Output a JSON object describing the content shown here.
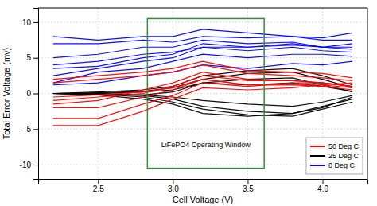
{
  "chart_data": {
    "type": "line",
    "xlabel": "Cell Voltage (V)",
    "ylabel": "Total Error Voltage (mv)",
    "xlim": [
      2.1,
      4.3
    ],
    "ylim": [
      -12,
      12
    ],
    "xticks": [
      2.5,
      {
        "value": 3.0,
        "label": "3.0"
      },
      3.5,
      {
        "value": 4.0,
        "label": "4.0"
      }
    ],
    "yticks": [
      -10,
      -5,
      0,
      5,
      10
    ],
    "grid": true,
    "legend": "lower right",
    "x": [
      2.2,
      2.5,
      2.8,
      3.0,
      3.2,
      3.5,
      3.8,
      4.0,
      4.2
    ],
    "series": [
      {
        "name": "0 Deg C",
        "color": "blue",
        "values": [
          8.0,
          7.5,
          8.0,
          8.0,
          9.0,
          8.5,
          8.0,
          7.8,
          8.5
        ]
      },
      {
        "name": "0 Deg C",
        "color": "blue",
        "values": [
          7.0,
          7.0,
          7.5,
          7.2,
          8.0,
          7.8,
          8.0,
          7.5,
          7.5
        ]
      },
      {
        "name": "0 Deg C",
        "color": "blue",
        "values": [
          5.0,
          5.5,
          6.5,
          6.5,
          7.5,
          7.0,
          7.2,
          6.5,
          7.0
        ]
      },
      {
        "name": "0 Deg C",
        "color": "blue",
        "values": [
          4.0,
          4.5,
          5.5,
          5.8,
          6.5,
          6.5,
          7.0,
          6.5,
          6.5
        ]
      },
      {
        "name": "0 Deg C",
        "color": "blue",
        "values": [
          3.5,
          3.8,
          5.0,
          5.5,
          7.0,
          6.5,
          6.8,
          6.5,
          6.2
        ]
      },
      {
        "name": "0 Deg C",
        "color": "blue",
        "values": [
          2.5,
          3.5,
          4.5,
          5.0,
          6.5,
          6.0,
          6.5,
          6.0,
          5.8
        ]
      },
      {
        "name": "0 Deg C",
        "color": "blue",
        "values": [
          1.5,
          3.0,
          3.5,
          4.5,
          5.5,
          5.0,
          5.5,
          5.5,
          5.2
        ]
      },
      {
        "name": "0 Deg C",
        "color": "blue",
        "values": [
          1.2,
          1.5,
          2.5,
          3.0,
          4.0,
          3.5,
          4.2,
          4.0,
          4.5
        ]
      },
      {
        "name": "25 Deg C",
        "color": "black",
        "values": [
          0.0,
          0.0,
          -0.2,
          -0.5,
          -1.0,
          -1.5,
          -1.8,
          -1.2,
          -0.3
        ]
      },
      {
        "name": "25 Deg C",
        "color": "black",
        "values": [
          0.0,
          -0.1,
          -0.3,
          -0.8,
          -1.8,
          -2.5,
          -2.8,
          -1.8,
          -0.8
        ]
      },
      {
        "name": "25 Deg C",
        "color": "black",
        "values": [
          0.0,
          -0.1,
          -0.5,
          -1.2,
          -2.2,
          -3.0,
          -3.2,
          -2.2,
          -1.2
        ]
      },
      {
        "name": "25 Deg C",
        "color": "black",
        "values": [
          0.0,
          0.0,
          0.2,
          0.5,
          1.5,
          2.0,
          2.2,
          1.2,
          0.2
        ]
      },
      {
        "name": "25 Deg C",
        "color": "black",
        "values": [
          0.0,
          0.1,
          0.3,
          0.8,
          2.0,
          2.8,
          3.0,
          2.0,
          0.8
        ]
      },
      {
        "name": "25 Deg C",
        "color": "black",
        "values": [
          0.0,
          0.2,
          0.5,
          1.0,
          2.5,
          3.2,
          3.5,
          2.5,
          1.2
        ]
      },
      {
        "name": "25 Deg C",
        "color": "black",
        "values": [
          -0.2,
          -0.1,
          -0.2,
          0.2,
          1.5,
          1.2,
          1.5,
          1.0,
          0.3
        ]
      },
      {
        "name": "25 Deg C",
        "color": "black",
        "values": [
          0.0,
          -0.2,
          -0.8,
          -1.5,
          -2.8,
          -3.2,
          -2.8,
          -2.0,
          -0.5
        ]
      },
      {
        "name": "50 Deg C",
        "color": "red",
        "values": [
          -4.5,
          -4.5,
          -2.5,
          -0.8,
          0.8,
          0.5,
          0.8,
          1.2,
          1.5
        ]
      },
      {
        "name": "50 Deg C",
        "color": "red",
        "values": [
          -3.5,
          -3.5,
          -1.5,
          -0.3,
          1.5,
          1.0,
          1.5,
          1.5,
          1.0
        ]
      },
      {
        "name": "50 Deg C",
        "color": "red",
        "values": [
          -2.0,
          -2.0,
          -0.5,
          0.5,
          2.0,
          1.2,
          1.2,
          1.0,
          0.5
        ]
      },
      {
        "name": "50 Deg C",
        "color": "red",
        "values": [
          -1.5,
          -1.0,
          0.5,
          1.5,
          3.0,
          2.0,
          1.8,
          1.5,
          1.0
        ]
      },
      {
        "name": "50 Deg C",
        "color": "red",
        "values": [
          -1.0,
          -0.5,
          0.0,
          1.0,
          2.5,
          1.8,
          1.8,
          1.5,
          1.0
        ]
      },
      {
        "name": "50 Deg C",
        "color": "red",
        "values": [
          -0.5,
          -0.2,
          0.2,
          0.8,
          2.0,
          1.2,
          1.2,
          1.2,
          0.8
        ]
      },
      {
        "name": "50 Deg C",
        "color": "red",
        "values": [
          1.5,
          2.0,
          2.5,
          3.0,
          4.0,
          2.8,
          2.5,
          2.2,
          1.8
        ]
      },
      {
        "name": "50 Deg C",
        "color": "red",
        "values": [
          2.0,
          2.5,
          3.0,
          3.5,
          4.5,
          3.2,
          3.0,
          2.8,
          2.2
        ]
      }
    ],
    "window": {
      "x": 2.83,
      "y": -10.5,
      "width": 0.78,
      "height": 21.0,
      "color": "#3a8a3a"
    },
    "annotations": [
      {
        "text": "LiFePO4 Operating Window",
        "x": 3.22,
        "y": -7.5
      }
    ]
  }
}
